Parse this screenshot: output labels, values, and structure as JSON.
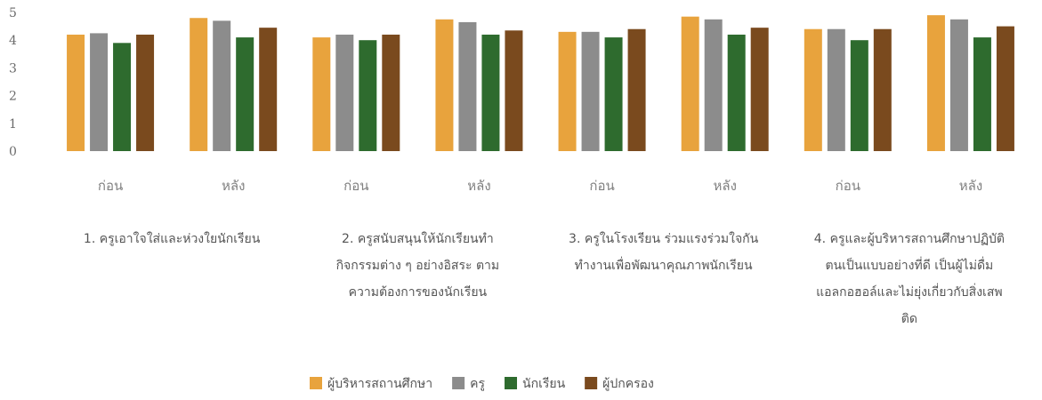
{
  "chart_data": {
    "type": "bar",
    "title": "",
    "xlabel": "",
    "ylabel": "",
    "ylim": [
      0,
      5
    ],
    "yticks": [
      "0",
      "1",
      "2",
      "3",
      "4",
      "5"
    ],
    "grid": false,
    "legend_position": "bottom",
    "categories": [
      "ก่อน",
      "หลัง",
      "ก่อน",
      "หลัง",
      "ก่อน",
      "หลัง",
      "ก่อน",
      "หลัง"
    ],
    "groups": [
      {
        "lines": [
          "1. ครูเอาใจใส่และห่วงใยนักเรียน"
        ]
      },
      {
        "lines": [
          "2. ครูสนับสนุนให้นักเรียนทำ",
          "กิจกรรมต่าง ๆ อย่างอิสระ ตาม",
          "ความต้องการของนักเรียน"
        ]
      },
      {
        "lines": [
          "3. ครูในโรงเรียน ร่วมแรงร่วมใจกัน",
          "ทำงานเพื่อพัฒนาคุณภาพนักเรียน"
        ]
      },
      {
        "lines": [
          "4. ครูและผู้บริหารสถานศึกษาปฏิบัติ",
          "ตนเป็นแบบอย่างที่ดี เป็นผู้ไม่ดื่ม",
          "แอลกอฮอล์และไม่ยุ่งเกี่ยวกับสิ่งเสพ",
          "ติด"
        ]
      }
    ],
    "series": [
      {
        "name": "ผู้บริหารสถานศึกษา",
        "color": "#E8A33D",
        "values": [
          4.2,
          4.8,
          4.1,
          4.75,
          4.3,
          4.85,
          4.4,
          4.9
        ]
      },
      {
        "name": "ครู",
        "color": "#8C8C8C",
        "values": [
          4.25,
          4.7,
          4.2,
          4.65,
          4.3,
          4.75,
          4.4,
          4.75
        ]
      },
      {
        "name": "นักเรียน",
        "color": "#2E6B2E",
        "values": [
          3.9,
          4.1,
          4.0,
          4.2,
          4.1,
          4.2,
          4.0,
          4.1
        ]
      },
      {
        "name": "ผู้ปกครอง",
        "color": "#7A4A1E",
        "values": [
          4.2,
          4.45,
          4.2,
          4.35,
          4.4,
          4.45,
          4.4,
          4.5
        ]
      }
    ]
  }
}
